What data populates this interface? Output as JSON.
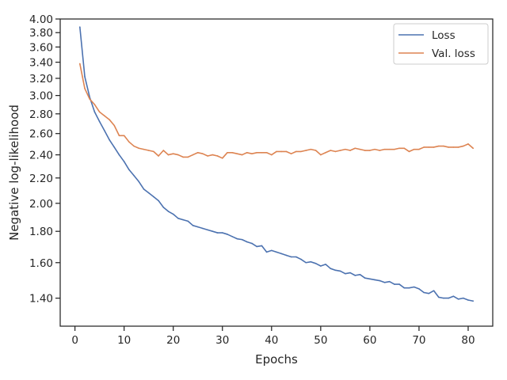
{
  "chart_data": {
    "type": "line",
    "title": "",
    "xlabel": "Epochs",
    "ylabel": "Negative log-likelihood",
    "yscale": "log",
    "xlim": [
      -3,
      85
    ],
    "ylim": [
      1.26,
      4.0
    ],
    "xticks": [
      0,
      10,
      20,
      30,
      40,
      50,
      60,
      70,
      80
    ],
    "xtick_labels": [
      "0",
      "10",
      "20",
      "30",
      "40",
      "50",
      "60",
      "70",
      "80"
    ],
    "yticks": [
      1.4,
      1.6,
      1.8,
      2.0,
      2.2,
      2.4,
      2.6,
      2.8,
      3.0,
      3.2,
      3.4,
      3.6,
      3.8,
      4.0
    ],
    "ytick_labels": [
      "1.40",
      "1.60",
      "1.80",
      "2.00",
      "2.20",
      "2.40",
      "2.60",
      "2.80",
      "3.00",
      "3.20",
      "3.40",
      "3.60",
      "3.80",
      "4.00"
    ],
    "grid": false,
    "legend": "top-right",
    "x": [
      1,
      2,
      3,
      4,
      5,
      6,
      7,
      8,
      9,
      10,
      11,
      12,
      13,
      14,
      15,
      16,
      17,
      18,
      19,
      20,
      21,
      22,
      23,
      24,
      25,
      26,
      27,
      28,
      29,
      30,
      31,
      32,
      33,
      34,
      35,
      36,
      37,
      38,
      39,
      40,
      41,
      42,
      43,
      44,
      45,
      46,
      47,
      48,
      49,
      50,
      51,
      52,
      53,
      54,
      55,
      56,
      57,
      58,
      59,
      60,
      61,
      62,
      63,
      64,
      65,
      66,
      67,
      68,
      69,
      70,
      71,
      72,
      73,
      74,
      75,
      76,
      77,
      78,
      79,
      80,
      81
    ],
    "series": [
      {
        "name": "Loss",
        "color": "#4c72b0",
        "values": [
          3.88,
          3.22,
          2.98,
          2.82,
          2.72,
          2.63,
          2.54,
          2.47,
          2.4,
          2.34,
          2.27,
          2.22,
          2.17,
          2.11,
          2.08,
          2.05,
          2.02,
          1.97,
          1.94,
          1.92,
          1.89,
          1.88,
          1.87,
          1.84,
          1.83,
          1.82,
          1.81,
          1.8,
          1.79,
          1.79,
          1.78,
          1.765,
          1.75,
          1.745,
          1.73,
          1.72,
          1.7,
          1.705,
          1.665,
          1.675,
          1.665,
          1.655,
          1.645,
          1.635,
          1.635,
          1.62,
          1.6,
          1.605,
          1.595,
          1.58,
          1.59,
          1.565,
          1.555,
          1.55,
          1.535,
          1.54,
          1.525,
          1.53,
          1.51,
          1.505,
          1.5,
          1.495,
          1.485,
          1.49,
          1.475,
          1.475,
          1.455,
          1.455,
          1.46,
          1.45,
          1.43,
          1.425,
          1.44,
          1.405,
          1.4,
          1.4,
          1.41,
          1.395,
          1.4,
          1.39,
          1.385
        ]
      },
      {
        "name": "Val. loss",
        "color": "#dd8452",
        "values": [
          3.38,
          3.08,
          2.96,
          2.9,
          2.82,
          2.78,
          2.74,
          2.68,
          2.58,
          2.58,
          2.52,
          2.48,
          2.46,
          2.45,
          2.44,
          2.43,
          2.39,
          2.44,
          2.4,
          2.41,
          2.4,
          2.38,
          2.38,
          2.4,
          2.42,
          2.41,
          2.39,
          2.4,
          2.39,
          2.37,
          2.42,
          2.42,
          2.41,
          2.4,
          2.42,
          2.41,
          2.42,
          2.42,
          2.42,
          2.4,
          2.43,
          2.43,
          2.43,
          2.41,
          2.43,
          2.43,
          2.44,
          2.45,
          2.44,
          2.4,
          2.42,
          2.44,
          2.43,
          2.44,
          2.45,
          2.44,
          2.46,
          2.45,
          2.44,
          2.44,
          2.45,
          2.44,
          2.45,
          2.45,
          2.45,
          2.46,
          2.46,
          2.43,
          2.45,
          2.45,
          2.47,
          2.47,
          2.47,
          2.48,
          2.48,
          2.47,
          2.47,
          2.47,
          2.48,
          2.5,
          2.46
        ]
      }
    ]
  }
}
